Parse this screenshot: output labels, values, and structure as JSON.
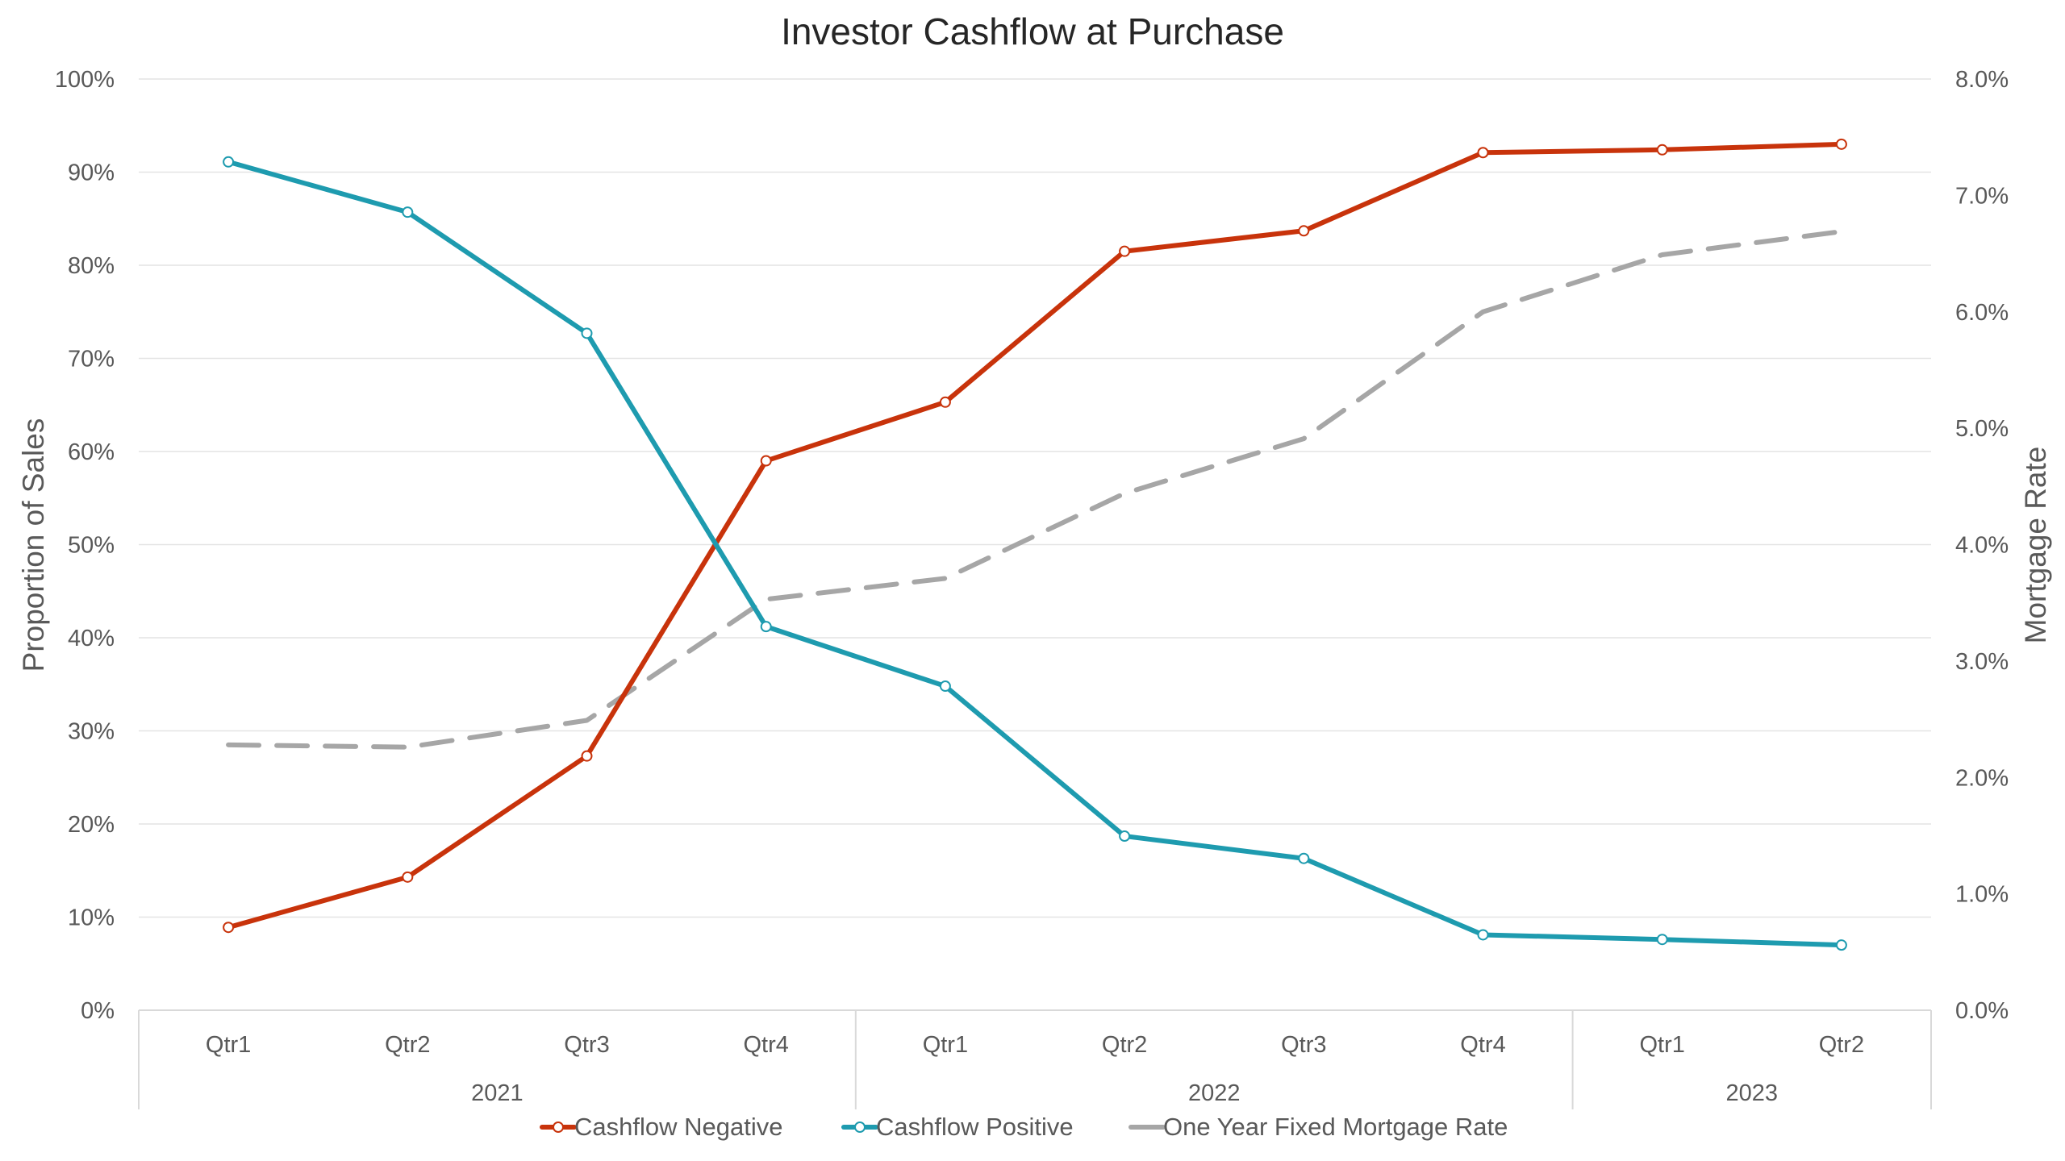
{
  "chart_data": {
    "type": "line",
    "title": "Investor Cashflow at Purchase",
    "ylabel": "Proportion of Sales",
    "y2label": "Mortgage Rate",
    "ylim": [
      0,
      100
    ],
    "y2lim": [
      0.0,
      8.0
    ],
    "yticks": [
      "0%",
      "10%",
      "20%",
      "30%",
      "40%",
      "50%",
      "60%",
      "70%",
      "80%",
      "90%",
      "100%"
    ],
    "y2ticks": [
      "0.0%",
      "1.0%",
      "2.0%",
      "3.0%",
      "4.0%",
      "5.0%",
      "6.0%",
      "7.0%",
      "8.0%"
    ],
    "categories": [
      "Qtr1",
      "Qtr2",
      "Qtr3",
      "Qtr4",
      "Qtr1",
      "Qtr2",
      "Qtr3",
      "Qtr4",
      "Qtr1",
      "Qtr2"
    ],
    "groups": [
      {
        "label": "2021",
        "count": 4
      },
      {
        "label": "2022",
        "count": 4
      },
      {
        "label": "2023",
        "count": 2
      }
    ],
    "grid": true,
    "legend_position": "bottom",
    "series": [
      {
        "name": "Cashflow Negative",
        "axis": "left",
        "color": "#C8330B",
        "style": "solid",
        "markers": true,
        "values": [
          8.9,
          14.3,
          27.3,
          59.0,
          65.3,
          81.5,
          83.7,
          92.1,
          92.4,
          93.0
        ]
      },
      {
        "name": "Cashflow Positive",
        "axis": "left",
        "color": "#1E9BAF",
        "style": "solid",
        "markers": true,
        "values": [
          91.1,
          85.7,
          72.7,
          41.2,
          34.8,
          18.7,
          16.3,
          8.1,
          7.6,
          7.0
        ]
      },
      {
        "name": "One Year Fixed Mortgage Rate",
        "axis": "right",
        "color": "#A6A6A6",
        "style": "dashed",
        "markers": false,
        "values": [
          2.28,
          2.26,
          2.49,
          3.53,
          3.71,
          4.44,
          4.91,
          6.0,
          6.49,
          6.69
        ]
      }
    ]
  }
}
